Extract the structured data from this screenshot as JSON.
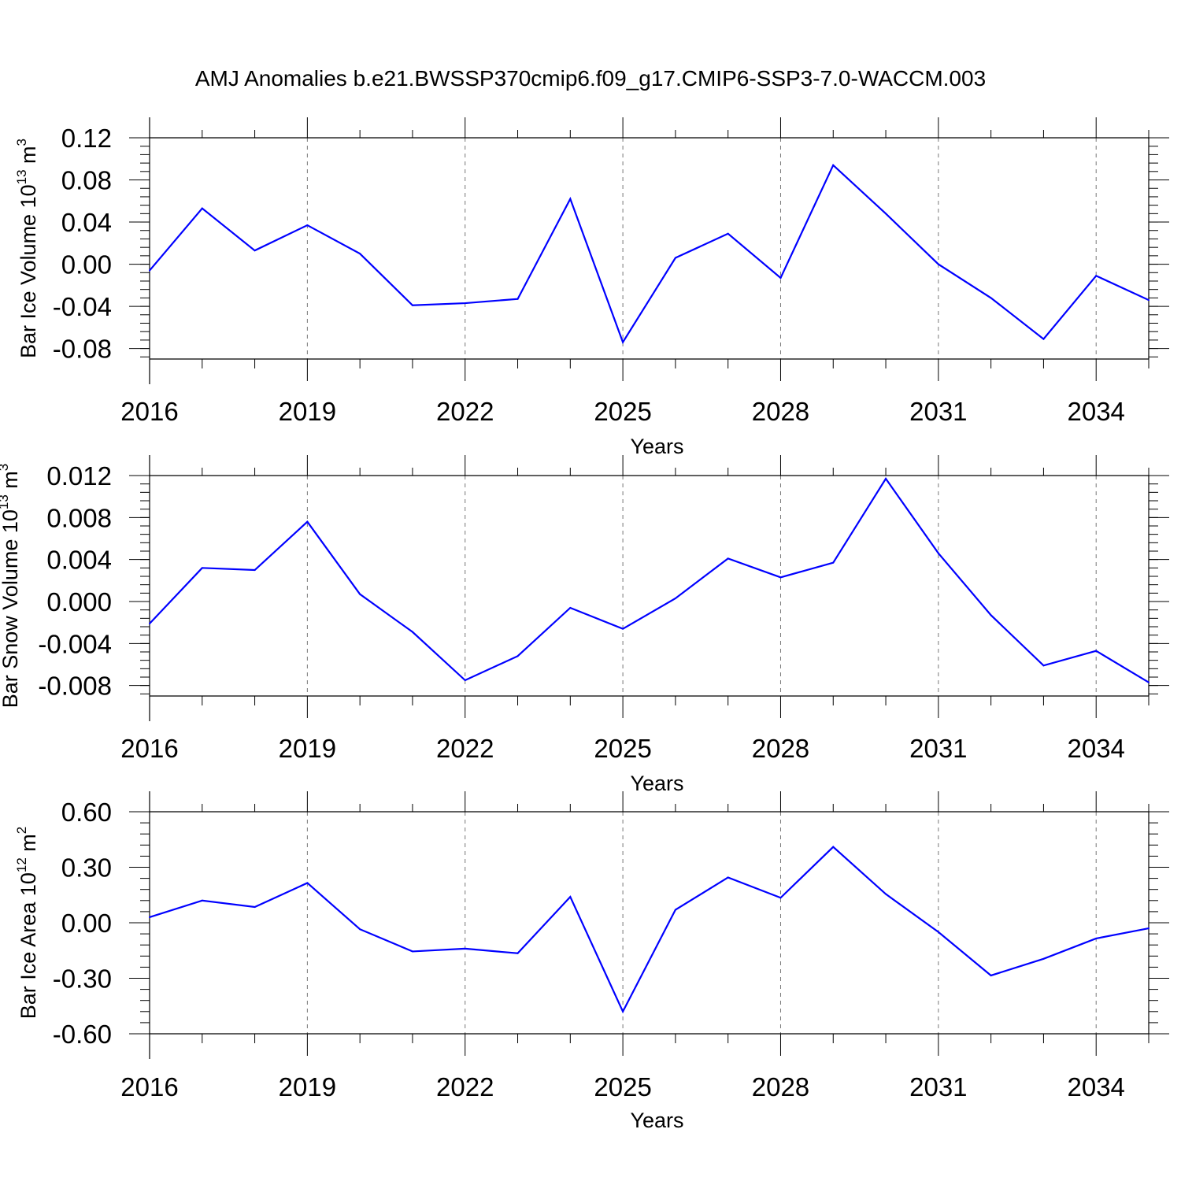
{
  "chart_data": {
    "title": "AMJ Anomalies b.e21.BWSSP370cmip6.f09_g17.CMIP6-SSP3-7.0-WACCM.003",
    "line_color": "#0000ff",
    "panels": [
      {
        "type": "line",
        "ylabel": "Bar Ice Volume 10",
        "ylabel_exp": "13",
        "ylabel_unit": " m",
        "ylabel_unit_exp": "3",
        "xlabel": "Years",
        "xlim": [
          2016,
          2035
        ],
        "ylim": [
          -0.09,
          0.12
        ],
        "yticks": [
          0.12,
          0.08,
          0.04,
          0.0,
          -0.04,
          -0.08
        ],
        "ytick_labels": [
          "0.12",
          "0.08",
          "0.04",
          "0.00",
          "-0.04",
          "-0.08"
        ],
        "xticks": [
          2016,
          2019,
          2022,
          2025,
          2028,
          2031,
          2034
        ],
        "xtick_labels": [
          "2016",
          "2019",
          "2022",
          "2025",
          "2028",
          "2031",
          "2034"
        ],
        "grid": "dashed vertical",
        "x": [
          2016,
          2017,
          2018,
          2019,
          2020,
          2021,
          2022,
          2023,
          2024,
          2025,
          2026,
          2027,
          2028,
          2029,
          2030,
          2031,
          2032,
          2033,
          2034,
          2035
        ],
        "y": [
          -0.006,
          0.053,
          0.013,
          0.037,
          0.01,
          -0.039,
          -0.037,
          -0.033,
          0.062,
          -0.074,
          0.006,
          0.029,
          -0.013,
          0.094,
          0.048,
          0.0,
          -0.032,
          -0.071,
          -0.011,
          -0.034
        ]
      },
      {
        "type": "line",
        "ylabel": "Bar Snow Volume 10",
        "ylabel_exp": "13",
        "ylabel_unit": " m",
        "ylabel_unit_exp": "3",
        "xlabel": "Years",
        "xlim": [
          2016,
          2035
        ],
        "ylim": [
          -0.009,
          0.012
        ],
        "yticks": [
          0.012,
          0.008,
          0.004,
          0.0,
          -0.004,
          -0.008
        ],
        "ytick_labels": [
          "0.012",
          "0.008",
          "0.004",
          "0.000",
          "-0.004",
          "-0.008"
        ],
        "xticks": [
          2016,
          2019,
          2022,
          2025,
          2028,
          2031,
          2034
        ],
        "xtick_labels": [
          "2016",
          "2019",
          "2022",
          "2025",
          "2028",
          "2031",
          "2034"
        ],
        "grid": "dashed vertical",
        "x": [
          2016,
          2017,
          2018,
          2019,
          2020,
          2021,
          2022,
          2023,
          2024,
          2025,
          2026,
          2027,
          2028,
          2029,
          2030,
          2031,
          2032,
          2033,
          2034,
          2035
        ],
        "y": [
          -0.0021,
          0.0032,
          0.003,
          0.0076,
          0.0007,
          -0.0029,
          -0.0075,
          -0.0052,
          -0.0006,
          -0.0026,
          0.0003,
          0.0041,
          0.0023,
          0.0037,
          0.0117,
          0.0046,
          -0.0013,
          -0.0061,
          -0.0047,
          -0.0077
        ]
      },
      {
        "type": "line",
        "ylabel": "Bar Ice Area 10",
        "ylabel_exp": "12",
        "ylabel_unit": " m",
        "ylabel_unit_exp": "2",
        "xlabel": "Years",
        "xlim": [
          2016,
          2035
        ],
        "ylim": [
          -0.6,
          0.6
        ],
        "yticks": [
          0.6,
          0.3,
          0.0,
          -0.3,
          -0.6
        ],
        "ytick_labels": [
          "0.60",
          "0.30",
          "0.00",
          "-0.30",
          "-0.60"
        ],
        "xticks": [
          2016,
          2019,
          2022,
          2025,
          2028,
          2031,
          2034
        ],
        "xtick_labels": [
          "2016",
          "2019",
          "2022",
          "2025",
          "2028",
          "2031",
          "2034"
        ],
        "grid": "dashed vertical",
        "x": [
          2016,
          2017,
          2018,
          2019,
          2020,
          2021,
          2022,
          2023,
          2024,
          2025,
          2026,
          2027,
          2028,
          2029,
          2030,
          2031,
          2032,
          2033,
          2034,
          2035
        ],
        "y": [
          0.03,
          0.12,
          0.085,
          0.215,
          -0.035,
          -0.155,
          -0.14,
          -0.165,
          0.14,
          -0.48,
          0.07,
          0.245,
          0.135,
          0.41,
          0.155,
          -0.05,
          -0.285,
          -0.195,
          -0.085,
          -0.03
        ]
      }
    ]
  }
}
